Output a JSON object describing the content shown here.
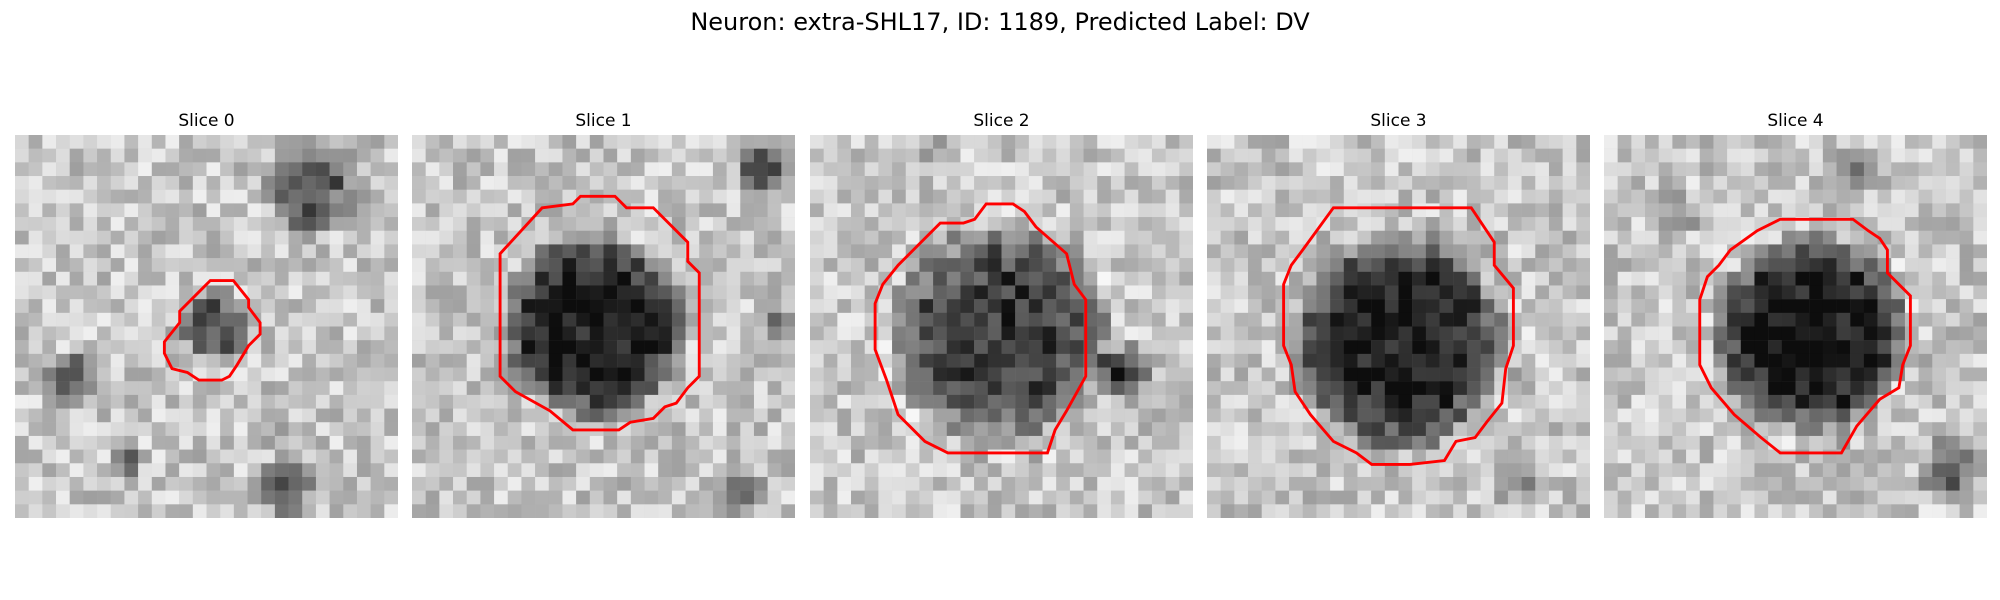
{
  "figure": {
    "title": "Neuron: extra-SHL17, ID: 1189, Predicted Label: DV"
  },
  "panels": [
    {
      "title": "Slice 0"
    },
    {
      "title": "Slice 1"
    },
    {
      "title": "Slice 2"
    },
    {
      "title": "Slice 3"
    },
    {
      "title": "Slice 4"
    }
  ],
  "colors": {
    "contour": "#ff0000",
    "background": "#ffffff"
  }
}
